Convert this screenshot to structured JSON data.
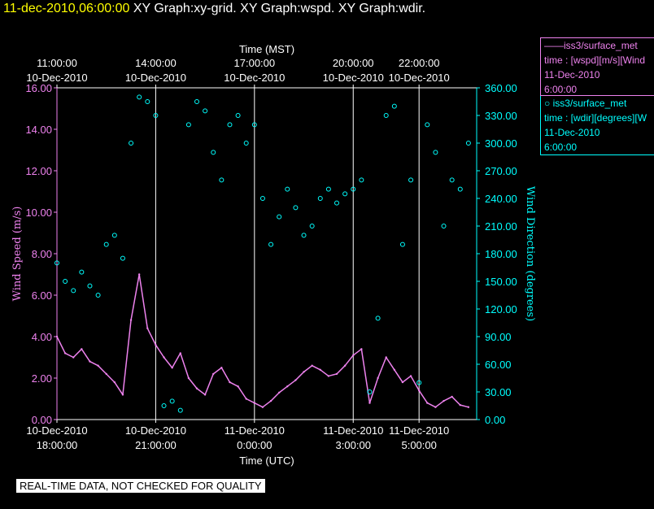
{
  "header": {
    "datetime": "11-dec-2010,06:00:00",
    "graphs": "XY Graph:xy-grid.  XY Graph:wspd.  XY Graph:wdir."
  },
  "legend": {
    "wspd": {
      "name_line": "——iss3/surface_met",
      "var_line": "time : [wspd][m/s][Wind",
      "date_line": "11-Dec-2010",
      "time_line": "6:00:00",
      "color": "#ee82ee"
    },
    "wdir": {
      "name_line": "○ iss3/surface_met",
      "var_line": "time : [wdir][degrees][W",
      "date_line": "11-Dec-2010",
      "time_line": "6:00:00",
      "color": "#00ffff"
    }
  },
  "footer_note": "REAL-TIME DATA, NOT CHECKED FOR QUALITY",
  "chart_data": {
    "type": "line",
    "x_top_label": "Time (MST)",
    "x_bottom_label": "Time (UTC)",
    "x_range_utc_hours_from_18Z_dec10": [
      0,
      12.75
    ],
    "top_ticks": [
      {
        "t": 0,
        "time": "11:00:00",
        "date": "10-Dec-2010"
      },
      {
        "t": 3,
        "time": "14:00:00",
        "date": "10-Dec-2010"
      },
      {
        "t": 6,
        "time": "17:00:00",
        "date": "10-Dec-2010"
      },
      {
        "t": 9,
        "time": "20:00:00",
        "date": "10-Dec-2010"
      },
      {
        "t": 11,
        "time": "22:00:00",
        "date": "10-Dec-2010"
      }
    ],
    "bottom_ticks": [
      {
        "t": 0,
        "date": "10-Dec-2010",
        "time": "18:00:00"
      },
      {
        "t": 3,
        "date": "10-Dec-2010",
        "time": "21:00:00"
      },
      {
        "t": 6,
        "date": "11-Dec-2010",
        "time": "0:00:00"
      },
      {
        "t": 9,
        "date": "11-Dec-2010",
        "time": "3:00:00"
      },
      {
        "t": 11,
        "date": "11-Dec-2010",
        "time": "5:00:00"
      }
    ],
    "y_left": {
      "label": "Wind Speed (m/s)",
      "range": [
        0,
        16
      ],
      "ticks": [
        "0.00",
        "2.00",
        "4.00",
        "6.00",
        "8.00",
        "10.00",
        "12.00",
        "14.00",
        "16.00"
      ],
      "color": "#ee82ee"
    },
    "y_right": {
      "label": "Wind Direction (degrees)",
      "range": [
        0,
        360
      ],
      "ticks": [
        "0.00",
        "30.00",
        "60.00",
        "90.00",
        "120.00",
        "150.00",
        "180.00",
        "210.00",
        "240.00",
        "270.00",
        "300.00",
        "330.00",
        "360.00"
      ],
      "color": "#00ffff"
    },
    "grid_vertical_at_t": [
      3,
      6,
      9,
      11
    ],
    "series": [
      {
        "name": "iss3/surface_met wspd",
        "axis": "left",
        "style": "line",
        "color": "#ee82ee",
        "x": [
          0,
          0.25,
          0.5,
          0.75,
          1,
          1.25,
          1.5,
          1.75,
          2,
          2.25,
          2.5,
          2.75,
          3,
          3.25,
          3.5,
          3.75,
          4,
          4.25,
          4.5,
          4.75,
          5,
          5.25,
          5.5,
          5.75,
          6,
          6.25,
          6.5,
          6.75,
          7,
          7.25,
          7.5,
          7.75,
          8,
          8.25,
          8.5,
          8.75,
          9,
          9.25,
          9.5,
          9.75,
          10,
          10.25,
          10.5,
          10.75,
          11,
          11.25,
          11.5,
          11.75,
          12,
          12.25,
          12.5
        ],
        "y": [
          4.0,
          3.2,
          3.0,
          3.4,
          2.8,
          2.6,
          2.2,
          1.8,
          1.2,
          4.8,
          7.0,
          4.4,
          3.6,
          3.0,
          2.5,
          3.2,
          2.0,
          1.5,
          1.2,
          2.2,
          2.5,
          1.8,
          1.6,
          1.0,
          0.8,
          0.6,
          0.9,
          1.3,
          1.6,
          1.9,
          2.3,
          2.6,
          2.4,
          2.1,
          2.2,
          2.6,
          3.1,
          3.4,
          0.8,
          2.0,
          3.0,
          2.4,
          1.8,
          2.1,
          1.4,
          0.8,
          0.6,
          0.9,
          1.1,
          0.7,
          0.6
        ]
      },
      {
        "name": "iss3/surface_met wdir",
        "axis": "right",
        "style": "markers",
        "color": "#00ffff",
        "x": [
          0,
          0.25,
          0.5,
          0.75,
          1,
          1.25,
          1.5,
          1.75,
          2,
          2.25,
          2.5,
          2.75,
          3,
          3.25,
          3.5,
          3.75,
          4,
          4.25,
          4.5,
          4.75,
          5,
          5.25,
          5.5,
          5.75,
          6,
          6.25,
          6.5,
          6.75,
          7,
          7.25,
          7.5,
          7.75,
          8,
          8.25,
          8.5,
          8.75,
          9,
          9.25,
          9.5,
          9.75,
          10,
          10.25,
          10.5,
          10.75,
          11,
          11.25,
          11.5,
          11.75,
          12,
          12.25,
          12.5
        ],
        "y": [
          170,
          150,
          140,
          160,
          145,
          135,
          190,
          200,
          175,
          300,
          350,
          345,
          330,
          15,
          20,
          10,
          320,
          345,
          335,
          290,
          260,
          320,
          330,
          300,
          320,
          240,
          190,
          220,
          250,
          230,
          200,
          210,
          240,
          250,
          235,
          245,
          250,
          260,
          30,
          110,
          330,
          340,
          190,
          260,
          40,
          320,
          290,
          210,
          260,
          250,
          300
        ]
      }
    ]
  }
}
